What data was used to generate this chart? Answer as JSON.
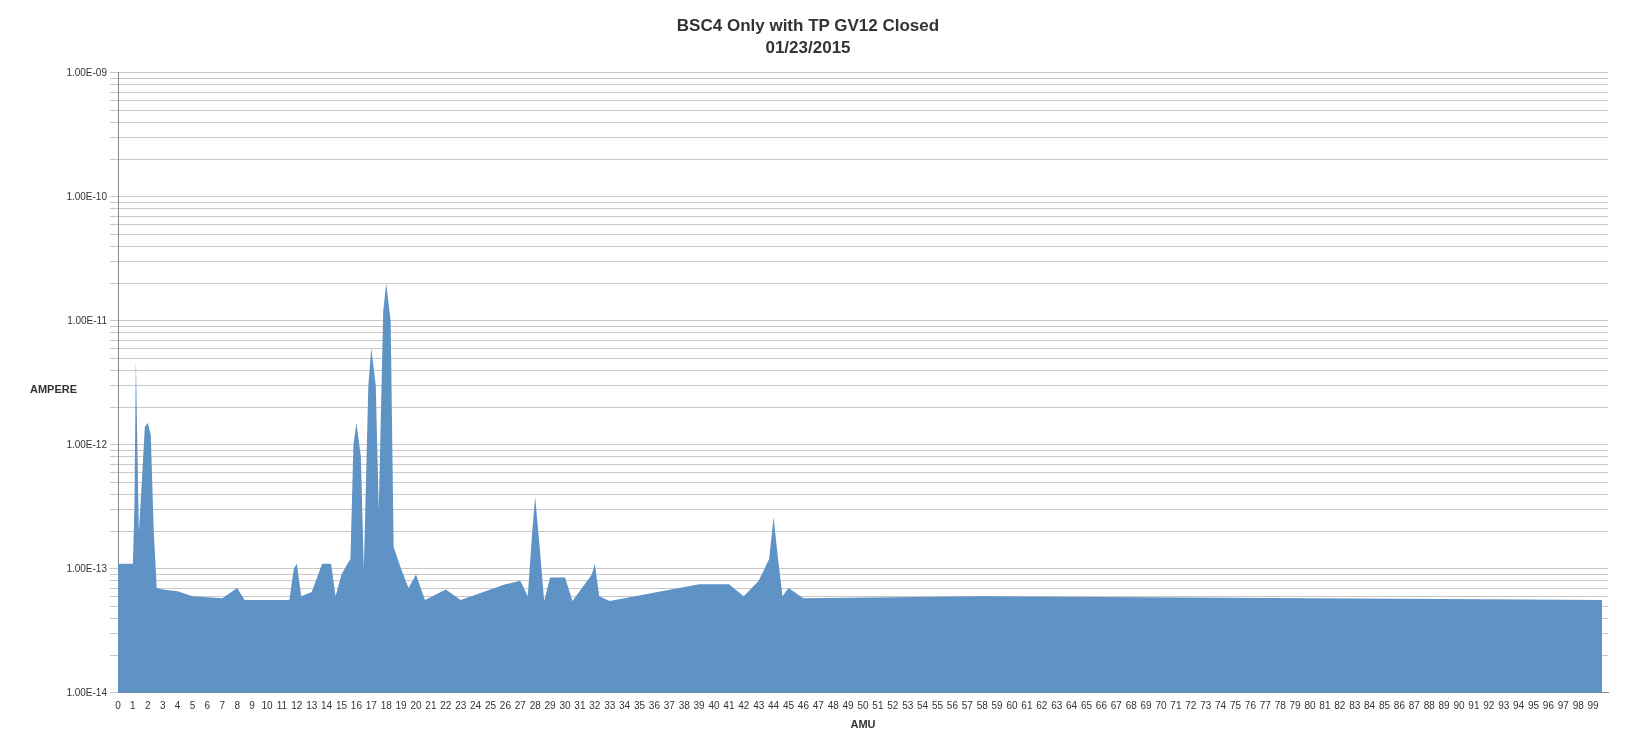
{
  "chart_data": {
    "type": "area",
    "title": "BSC4 Only with TP GV12 Closed",
    "subtitle": "01/23/2015",
    "xlabel": "AMU",
    "ylabel": "AMPERE",
    "x": [
      0,
      1,
      1.1,
      1.2,
      1.4,
      1.6,
      1.8,
      2,
      2.2,
      2.4,
      2.6,
      3,
      4,
      5,
      7,
      8,
      8.5,
      11.5,
      11.8,
      12,
      12.3,
      13,
      13.7,
      14.3,
      14.6,
      15,
      15.4,
      15.6,
      15.8,
      16,
      16.3,
      16.5,
      16.8,
      17,
      17.3,
      17.5,
      17.8,
      18,
      18.3,
      18.5,
      19,
      19.5,
      20,
      20.6,
      22,
      23,
      26,
      27,
      27.5,
      27.8,
      28,
      28.3,
      28.6,
      29,
      30,
      30.5,
      31.8,
      32,
      32.3,
      33,
      39,
      40,
      41,
      42,
      43,
      43.7,
      44,
      44.3,
      44.6,
      45,
      46,
      58,
      99.6
    ],
    "series": [
      {
        "color": "#5f93c6",
        "values": [
          1.1e-13,
          1.1e-13,
          3e-13,
          4.8e-12,
          2e-13,
          5e-13,
          1.4e-12,
          1.5e-12,
          1.2e-12,
          2e-13,
          7e-14,
          6.8e-14,
          6.6e-14,
          6e-14,
          5.8e-14,
          7e-14,
          5.6e-14,
          5.6e-14,
          1e-13,
          1.1e-13,
          6e-14,
          6.5e-14,
          1.1e-13,
          1.1e-13,
          6e-14,
          9e-14,
          1.1e-13,
          1.2e-13,
          1e-12,
          1.5e-12,
          8e-13,
          1e-13,
          3e-12,
          6e-12,
          3e-12,
          3e-13,
          1.2e-11,
          2e-11,
          1e-11,
          1.5e-13,
          1e-13,
          7e-14,
          9e-14,
          5.6e-14,
          6.8e-14,
          5.6e-14,
          7.5e-14,
          8e-14,
          6e-14,
          2e-13,
          3.8e-13,
          1.5e-13,
          5.5e-14,
          8.5e-14,
          8.5e-14,
          5.5e-14,
          9e-14,
          1.1e-13,
          6e-14,
          5.5e-14,
          7.5e-14,
          7.5e-14,
          7.5e-14,
          6e-14,
          8e-14,
          1.2e-13,
          2.6e-13,
          1.2e-13,
          6e-14,
          7e-14,
          5.8e-14,
          6e-14,
          5.6e-14
        ]
      }
    ],
    "xlim": [
      0,
      100
    ],
    "xticks": [
      0,
      1,
      2,
      3,
      4,
      5,
      6,
      7,
      8,
      9,
      10,
      11,
      12,
      13,
      14,
      15,
      16,
      17,
      18,
      19,
      20,
      21,
      22,
      23,
      24,
      25,
      26,
      27,
      28,
      29,
      30,
      31,
      32,
      33,
      34,
      35,
      36,
      37,
      38,
      39,
      40,
      41,
      42,
      43,
      44,
      45,
      46,
      47,
      48,
      49,
      50,
      51,
      52,
      53,
      54,
      55,
      56,
      57,
      58,
      59,
      60,
      61,
      62,
      63,
      64,
      65,
      66,
      67,
      68,
      69,
      70,
      71,
      72,
      73,
      74,
      75,
      76,
      77,
      78,
      79,
      80,
      81,
      82,
      83,
      84,
      85,
      86,
      87,
      88,
      89,
      90,
      91,
      92,
      93,
      94,
      95,
      96,
      97,
      98,
      99
    ],
    "log": true,
    "ylim": [
      1e-14,
      1e-09
    ],
    "yticks": [
      {
        "value": 1e-14,
        "label": "1.00E-14"
      },
      {
        "value": 2e-14,
        "label": null
      },
      {
        "value": 3e-14,
        "label": null
      },
      {
        "value": 4e-14,
        "label": null
      },
      {
        "value": 5e-14,
        "label": null
      },
      {
        "value": 6e-14,
        "label": null
      },
      {
        "value": 7e-14,
        "label": null
      },
      {
        "value": 8e-14,
        "label": null
      },
      {
        "value": 9e-14,
        "label": null
      },
      {
        "value": 1e-13,
        "label": "1.00E-13"
      },
      {
        "value": 2e-13,
        "label": null
      },
      {
        "value": 3e-13,
        "label": null
      },
      {
        "value": 4e-13,
        "label": null
      },
      {
        "value": 5e-13,
        "label": null
      },
      {
        "value": 6e-13,
        "label": null
      },
      {
        "value": 7e-13,
        "label": null
      },
      {
        "value": 8e-13,
        "label": null
      },
      {
        "value": 9e-13,
        "label": null
      },
      {
        "value": 1e-12,
        "label": "1.00E-12"
      },
      {
        "value": 2e-12,
        "label": null
      },
      {
        "value": 3e-12,
        "label": null
      },
      {
        "value": 4e-12,
        "label": null
      },
      {
        "value": 5e-12,
        "label": null
      },
      {
        "value": 6e-12,
        "label": null
      },
      {
        "value": 7e-12,
        "label": null
      },
      {
        "value": 8e-12,
        "label": null
      },
      {
        "value": 9e-12,
        "label": null
      },
      {
        "value": 1e-11,
        "label": "1.00E-11"
      },
      {
        "value": 2e-11,
        "label": null
      },
      {
        "value": 3e-11,
        "label": null
      },
      {
        "value": 4e-11,
        "label": null
      },
      {
        "value": 5e-11,
        "label": null
      },
      {
        "value": 6e-11,
        "label": null
      },
      {
        "value": 7e-11,
        "label": null
      },
      {
        "value": 8e-11,
        "label": null
      },
      {
        "value": 9e-11,
        "label": null
      },
      {
        "value": 1e-10,
        "label": "1.00E-10"
      },
      {
        "value": 2e-10,
        "label": null
      },
      {
        "value": 3e-10,
        "label": null
      },
      {
        "value": 4e-10,
        "label": null
      },
      {
        "value": 5e-10,
        "label": null
      },
      {
        "value": 6e-10,
        "label": null
      },
      {
        "value": 7e-10,
        "label": null
      },
      {
        "value": 8e-10,
        "label": null
      },
      {
        "value": 9e-10,
        "label": null
      },
      {
        "value": 1e-09,
        "label": "1.00E-09"
      }
    ],
    "grid": "y",
    "legend": false,
    "marker": "none"
  }
}
